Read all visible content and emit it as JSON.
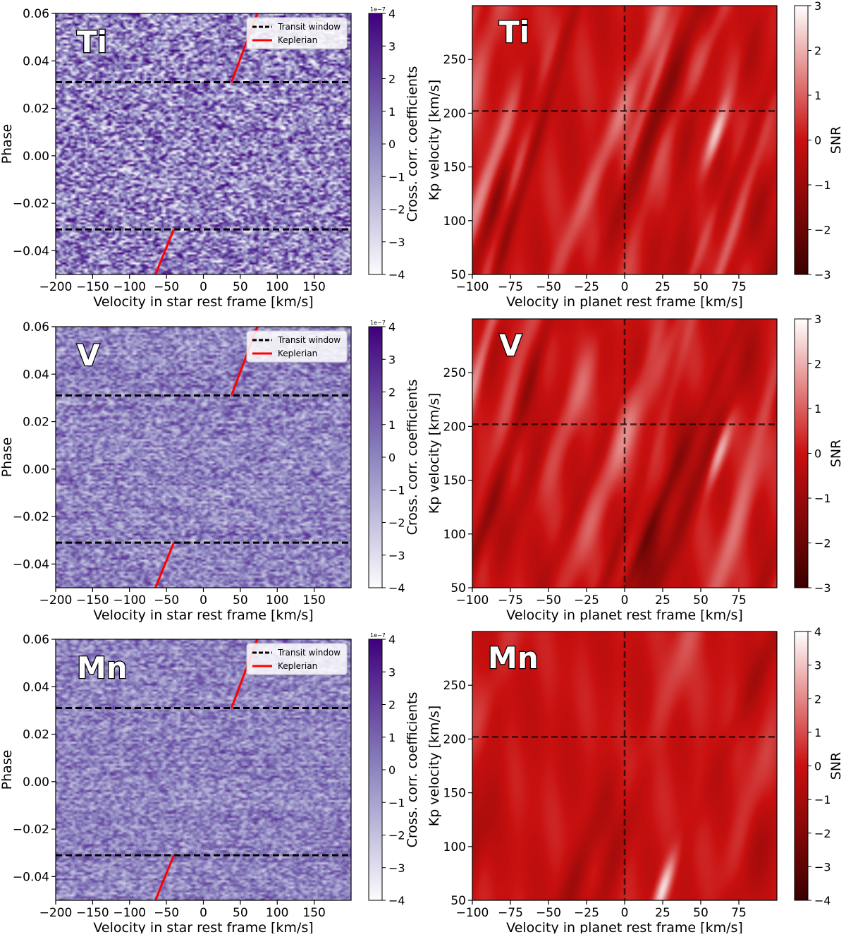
{
  "chart_data": [
    {
      "type": "heatmap",
      "element": "Ti",
      "colormap": "Purples",
      "xlabel": "Velocity in star rest frame [km/s]",
      "ylabel": "Phase",
      "xlim": [
        -200,
        200
      ],
      "ylim": [
        -0.05,
        0.06
      ],
      "xticks": [
        -200,
        -150,
        -100,
        -50,
        0,
        50,
        100,
        150
      ],
      "xticklabels": [
        "−200",
        "−150",
        "−100",
        "−50",
        "0",
        "50",
        "100",
        "150"
      ],
      "yticks": [
        -0.04,
        -0.02,
        0.0,
        0.02,
        0.04,
        0.06
      ],
      "yticklabels": [
        "−0.04",
        "−0.02",
        "0.00",
        "0.02",
        "0.04",
        "0.06"
      ],
      "colorbar_label": "Cross. corr. coefficients",
      "colorbar_exponent": "1e−7",
      "colorbar_range": [
        -4,
        4
      ],
      "colorbar_ticks": [
        -4,
        -3,
        -2,
        -1,
        0,
        1,
        2,
        3,
        4
      ],
      "colorbar_ticklabels": [
        "−4",
        "−3",
        "−2",
        "−1",
        "0",
        "1",
        "2",
        "3",
        "4"
      ],
      "noise_contrast": 0.95,
      "transit_window_phase": [
        -0.031,
        0.031
      ],
      "keplerian_lower": {
        "v": [
          -65,
          -40
        ],
        "phase": [
          -0.05,
          -0.031
        ]
      },
      "keplerian_upper": {
        "v": [
          38,
          73
        ],
        "phase": [
          0.031,
          0.06
        ]
      },
      "legend": [
        "Transit window",
        "Keplerian"
      ]
    },
    {
      "type": "heatmap",
      "element": "Ti",
      "colormap": "Reds_r",
      "xlabel": "Velocity in planet rest frame [km/s]",
      "ylabel": "Kp velocity [km/s]",
      "xlim": [
        -100,
        100
      ],
      "ylim": [
        50,
        300
      ],
      "xticks": [
        -100,
        -75,
        -50,
        -25,
        0,
        25,
        50,
        75
      ],
      "xticklabels": [
        "−100",
        "−75",
        "−50",
        "−25",
        "0",
        "25",
        "50",
        "75"
      ],
      "yticks": [
        50,
        100,
        150,
        200,
        250
      ],
      "yticklabels": [
        "50",
        "100",
        "150",
        "200",
        "250"
      ],
      "colorbar_label": "SNR",
      "colorbar_range": [
        -3,
        3
      ],
      "colorbar_ticks": [
        -3,
        -2,
        -1,
        0,
        1,
        2,
        3
      ],
      "colorbar_ticklabels": [
        "−3",
        "−2",
        "−1",
        "0",
        "1",
        "2",
        "3"
      ],
      "crosshair": {
        "v": 0,
        "kp": 202
      },
      "peak": {
        "v": 60,
        "kp": 180,
        "snr": 2.9
      }
    },
    {
      "type": "heatmap",
      "element": "V",
      "colormap": "Purples",
      "xlabel": "Velocity in star rest frame [km/s]",
      "ylabel": "Phase",
      "xlim": [
        -200,
        200
      ],
      "ylim": [
        -0.05,
        0.06
      ],
      "xticks": [
        -200,
        -150,
        -100,
        -50,
        0,
        50,
        100,
        150
      ],
      "xticklabels": [
        "−200",
        "−150",
        "−100",
        "−50",
        "0",
        "50",
        "100",
        "150"
      ],
      "yticks": [
        -0.04,
        -0.02,
        0.0,
        0.02,
        0.04,
        0.06
      ],
      "yticklabels": [
        "−0.04",
        "−0.02",
        "0.00",
        "0.02",
        "0.04",
        "0.06"
      ],
      "colorbar_label": "Cross. corr. coefficients",
      "colorbar_exponent": "1e−7",
      "colorbar_range": [
        -4,
        4
      ],
      "colorbar_ticks": [
        -4,
        -3,
        -2,
        -1,
        0,
        1,
        2,
        3,
        4
      ],
      "colorbar_ticklabels": [
        "−4",
        "−3",
        "−2",
        "−1",
        "0",
        "1",
        "2",
        "3",
        "4"
      ],
      "noise_contrast": 0.55,
      "transit_window_phase": [
        -0.031,
        0.031
      ],
      "keplerian_lower": {
        "v": [
          -65,
          -40
        ],
        "phase": [
          -0.05,
          -0.031
        ]
      },
      "keplerian_upper": {
        "v": [
          38,
          73
        ],
        "phase": [
          0.031,
          0.06
        ]
      },
      "legend": [
        "Transit window",
        "Keplerian"
      ]
    },
    {
      "type": "heatmap",
      "element": "V",
      "colormap": "Reds_r",
      "xlabel": "Velocity in planet rest frame [km/s]",
      "ylabel": "Kp velocity [km/s]",
      "xlim": [
        -100,
        100
      ],
      "ylim": [
        50,
        300
      ],
      "xticks": [
        -100,
        -75,
        -50,
        -25,
        0,
        25,
        50,
        75
      ],
      "xticklabels": [
        "−100",
        "−75",
        "−50",
        "−25",
        "0",
        "25",
        "50",
        "75"
      ],
      "yticks": [
        50,
        100,
        150,
        200,
        250
      ],
      "yticklabels": [
        "50",
        "100",
        "150",
        "200",
        "250"
      ],
      "colorbar_label": "SNR",
      "colorbar_range": [
        -3,
        3
      ],
      "colorbar_ticks": [
        -3,
        -2,
        -1,
        0,
        1,
        2,
        3
      ],
      "colorbar_ticklabels": [
        "−3",
        "−2",
        "−1",
        "0",
        "1",
        "2",
        "3"
      ],
      "crosshair": {
        "v": 0,
        "kp": 202
      },
      "peak": {
        "v": 62,
        "kp": 175,
        "snr": 3.0
      }
    },
    {
      "type": "heatmap",
      "element": "Mn",
      "colormap": "Purples",
      "xlabel": "Velocity in star rest frame [km/s]",
      "ylabel": "Phase",
      "xlim": [
        -200,
        200
      ],
      "ylim": [
        -0.05,
        0.06
      ],
      "xticks": [
        -200,
        -150,
        -100,
        -50,
        0,
        50,
        100,
        150
      ],
      "xticklabels": [
        "−200",
        "−150",
        "−100",
        "−50",
        "0",
        "50",
        "100",
        "150"
      ],
      "yticks": [
        -0.04,
        -0.02,
        0.0,
        0.02,
        0.04,
        0.06
      ],
      "yticklabels": [
        "−0.04",
        "−0.02",
        "0.00",
        "0.02",
        "0.04",
        "0.06"
      ],
      "colorbar_label": "Cross. corr. coefficients",
      "colorbar_exponent": "1e−7",
      "colorbar_range": [
        -4,
        4
      ],
      "colorbar_ticks": [
        -4,
        -3,
        -2,
        -1,
        0,
        1,
        2,
        3,
        4
      ],
      "colorbar_ticklabels": [
        "−4",
        "−3",
        "−2",
        "−1",
        "0",
        "1",
        "2",
        "3",
        "4"
      ],
      "noise_contrast": 0.5,
      "transit_window_phase": [
        -0.031,
        0.031
      ],
      "keplerian_lower": {
        "v": [
          -65,
          -40
        ],
        "phase": [
          -0.05,
          -0.031
        ]
      },
      "keplerian_upper": {
        "v": [
          38,
          73
        ],
        "phase": [
          0.031,
          0.06
        ]
      },
      "legend": [
        "Transit window",
        "Keplerian"
      ]
    },
    {
      "type": "heatmap",
      "element": "Mn",
      "colormap": "Reds_r",
      "xlabel": "Velocity in planet rest frame [km/s]",
      "ylabel": "Kp velocity [km/s]",
      "xlim": [
        -100,
        100
      ],
      "ylim": [
        50,
        300
      ],
      "xticks": [
        -100,
        -75,
        -50,
        -25,
        0,
        25,
        50,
        75
      ],
      "xticklabels": [
        "−100",
        "−75",
        "−50",
        "−25",
        "0",
        "25",
        "50",
        "75"
      ],
      "yticks": [
        50,
        100,
        150,
        200,
        250
      ],
      "yticklabels": [
        "50",
        "100",
        "150",
        "200",
        "250"
      ],
      "colorbar_label": "SNR",
      "colorbar_range": [
        -4,
        4
      ],
      "colorbar_ticks": [
        -4,
        -3,
        -2,
        -1,
        0,
        1,
        2,
        3,
        4
      ],
      "colorbar_ticklabels": [
        "−4",
        "−3",
        "−2",
        "−1",
        "0",
        "1",
        "2",
        "3",
        "4"
      ],
      "crosshair": {
        "v": 0,
        "kp": 202
      },
      "peak": {
        "v": 25,
        "kp": 60,
        "snr": 4.0
      }
    }
  ],
  "colors": {
    "purple_dark": "#3f007d",
    "purple_mid": "#8c86c0",
    "purple_light": "#fcfbfd",
    "red_dark": "#3a0000",
    "red_mid": "#c8100f",
    "red_light": "#ffffff",
    "keplerian": "#ff0000",
    "transit": "#000000"
  }
}
